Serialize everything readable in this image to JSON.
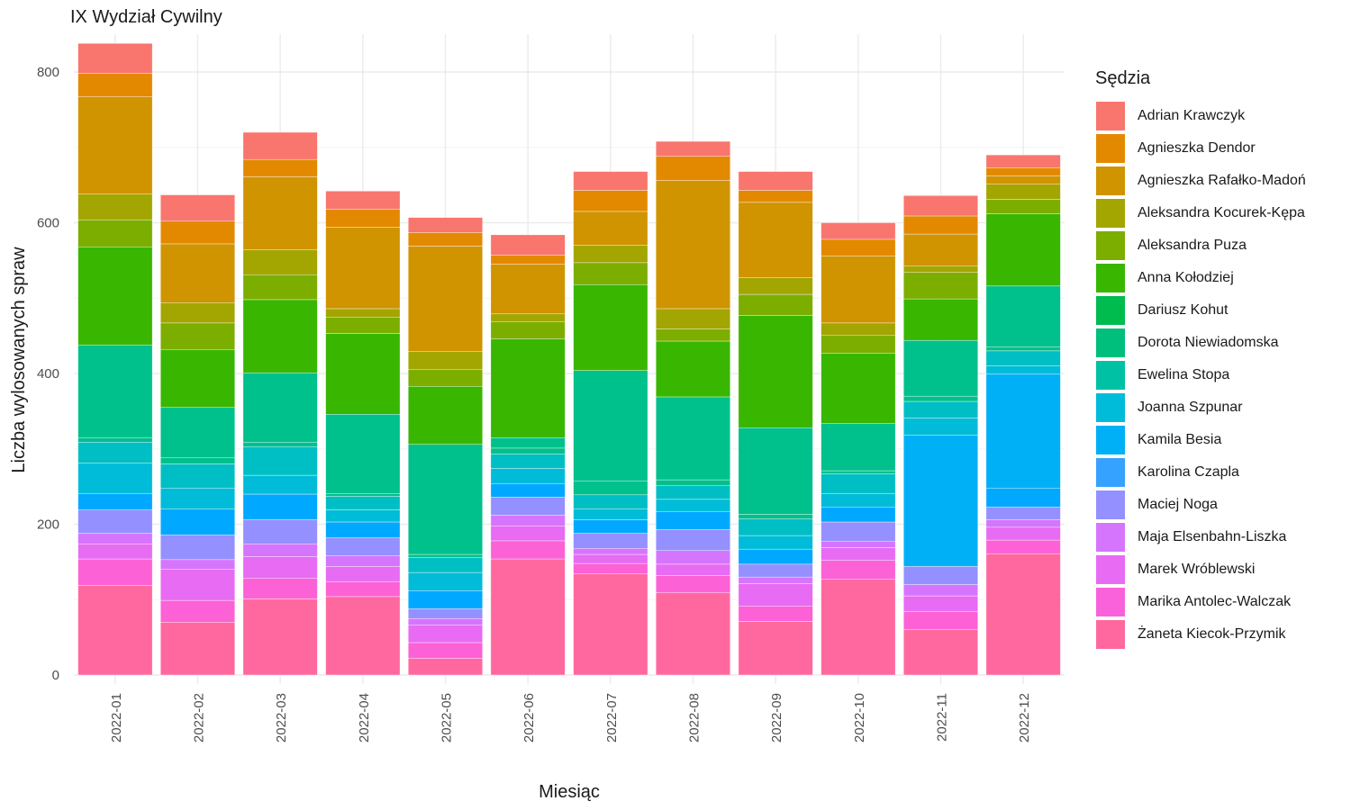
{
  "chart_data": {
    "type": "bar",
    "stacked": true,
    "title": "IX Wydział Cywilny",
    "xlabel": "Miesiąc",
    "ylabel": "Liczba wylosowanych spraw",
    "ylim": [
      0,
      840
    ],
    "yticks": [
      0,
      200,
      400,
      600,
      800
    ],
    "grid": true,
    "legend_title": "Sędzia",
    "legend_position": "right",
    "categories": [
      "2022-01",
      "2022-02",
      "2022-03",
      "2022-04",
      "2022-05",
      "2022-06",
      "2022-07",
      "2022-08",
      "2022-09",
      "2022-10",
      "2022-11",
      "2022-12"
    ],
    "series": [
      {
        "name": "Żaneta Kiecok-Przymik",
        "color": "#FF689F",
        "values": [
          119,
          70,
          101,
          104,
          22,
          154,
          134,
          109,
          71,
          127,
          60,
          161
        ]
      },
      {
        "name": "Marika Antolec-Walczak",
        "color": "#FC61D5",
        "values": [
          35,
          29,
          27,
          20,
          21,
          24,
          14,
          23,
          20,
          25,
          24,
          18
        ]
      },
      {
        "name": "Marek Wróblewski",
        "color": "#E76BF3",
        "values": [
          20,
          41,
          29,
          20,
          23,
          20,
          12,
          15,
          30,
          17,
          21,
          17
        ]
      },
      {
        "name": "Maja Elsenbahn-Liszka",
        "color": "#D575FE",
        "values": [
          14,
          13,
          17,
          14,
          9,
          14,
          8,
          18,
          9,
          8,
          15,
          10
        ]
      },
      {
        "name": "Maciej Noga",
        "color": "#9590FF",
        "values": [
          31,
          33,
          32,
          24,
          13,
          24,
          20,
          28,
          17,
          26,
          24,
          17
        ]
      },
      {
        "name": "Karolina Czapla",
        "color": "#00A9FF",
        "values": [
          22,
          34,
          34,
          21,
          24,
          18,
          18,
          24,
          20,
          20,
          0,
          25
        ]
      },
      {
        "name": "Kamila Besia",
        "color": "#00B0F6",
        "values": [
          0,
          0,
          0,
          0,
          0,
          0,
          0,
          0,
          0,
          0,
          174,
          151
        ]
      },
      {
        "name": "Joanna Szpunar",
        "color": "#00BCD8",
        "values": [
          40,
          28,
          25,
          16,
          24,
          20,
          14,
          16,
          18,
          18,
          23,
          11
        ]
      },
      {
        "name": "Ewelina Stopa",
        "color": "#00BFC4",
        "values": [
          28,
          32,
          38,
          18,
          20,
          19,
          19,
          18,
          22,
          26,
          22,
          20
        ]
      },
      {
        "name": "Dorota Niewiadomska",
        "color": "#00C08B",
        "values": [
          6,
          8,
          6,
          4,
          4,
          8,
          18,
          8,
          6,
          4,
          7,
          5
        ]
      },
      {
        "name": "Dariusz Kohut",
        "color": "#00C08B",
        "values": [
          123,
          67,
          92,
          105,
          146,
          14,
          147,
          110,
          115,
          63,
          74,
          81
        ]
      },
      {
        "name": "Anna Kołodziej",
        "color": "#39B600",
        "values": [
          130,
          77,
          97,
          107,
          77,
          131,
          114,
          74,
          149,
          93,
          55,
          96
        ]
      },
      {
        "name": "Aleksandra Puza",
        "color": "#7CAE00",
        "values": [
          36,
          35,
          33,
          22,
          22,
          23,
          29,
          16,
          28,
          24,
          35,
          19
        ]
      },
      {
        "name": "Aleksandra Kocurek-Kępa",
        "color": "#A3A500",
        "values": [
          34,
          27,
          33,
          11,
          24,
          10,
          23,
          27,
          22,
          16,
          9,
          20
        ]
      },
      {
        "name": "Agnieszka Rafałko-Madoń",
        "color": "#CF9400",
        "values": [
          129,
          78,
          97,
          108,
          140,
          66,
          45,
          170,
          100,
          89,
          42,
          11
        ]
      },
      {
        "name": "Agnieszka Dendor",
        "color": "#E38900",
        "values": [
          31,
          30,
          23,
          24,
          18,
          12,
          28,
          32,
          16,
          22,
          24,
          11
        ]
      },
      {
        "name": "Adrian Krawczyk",
        "color": "#F8766D",
        "values": [
          40,
          35,
          36,
          24,
          20,
          27,
          25,
          20,
          25,
          22,
          27,
          17
        ]
      }
    ]
  },
  "legend_items": [
    {
      "label": "Adrian Krawczyk",
      "color": "#F8766D"
    },
    {
      "label": "Agnieszka Dendor",
      "color": "#E38900"
    },
    {
      "label": "Agnieszka Rafałko-Madoń",
      "color": "#CF9400"
    },
    {
      "label": "Aleksandra Kocurek-Kępa",
      "color": "#A3A500"
    },
    {
      "label": "Aleksandra Puza",
      "color": "#7CAE00"
    },
    {
      "label": "Anna Kołodziej",
      "color": "#39B600"
    },
    {
      "label": "Dariusz Kohut",
      "color": "#00BB4E"
    },
    {
      "label": "Dorota Niewiadomska",
      "color": "#00BF7D"
    },
    {
      "label": "Ewelina Stopa",
      "color": "#00C1A3"
    },
    {
      "label": "Joanna Szpunar",
      "color": "#00BCD8"
    },
    {
      "label": "Kamila Besia",
      "color": "#00B0F6"
    },
    {
      "label": "Karolina Czapla",
      "color": "#35A2FF"
    },
    {
      "label": "Maciej Noga",
      "color": "#9590FF"
    },
    {
      "label": "Maja Elsenbahn-Liszka",
      "color": "#D575FE"
    },
    {
      "label": "Marek Wróblewski",
      "color": "#E76BF3"
    },
    {
      "label": "Marika Antolec-Walczak",
      "color": "#FA62DB"
    },
    {
      "label": "Żaneta Kiecok-Przymik",
      "color": "#FF689F"
    }
  ]
}
